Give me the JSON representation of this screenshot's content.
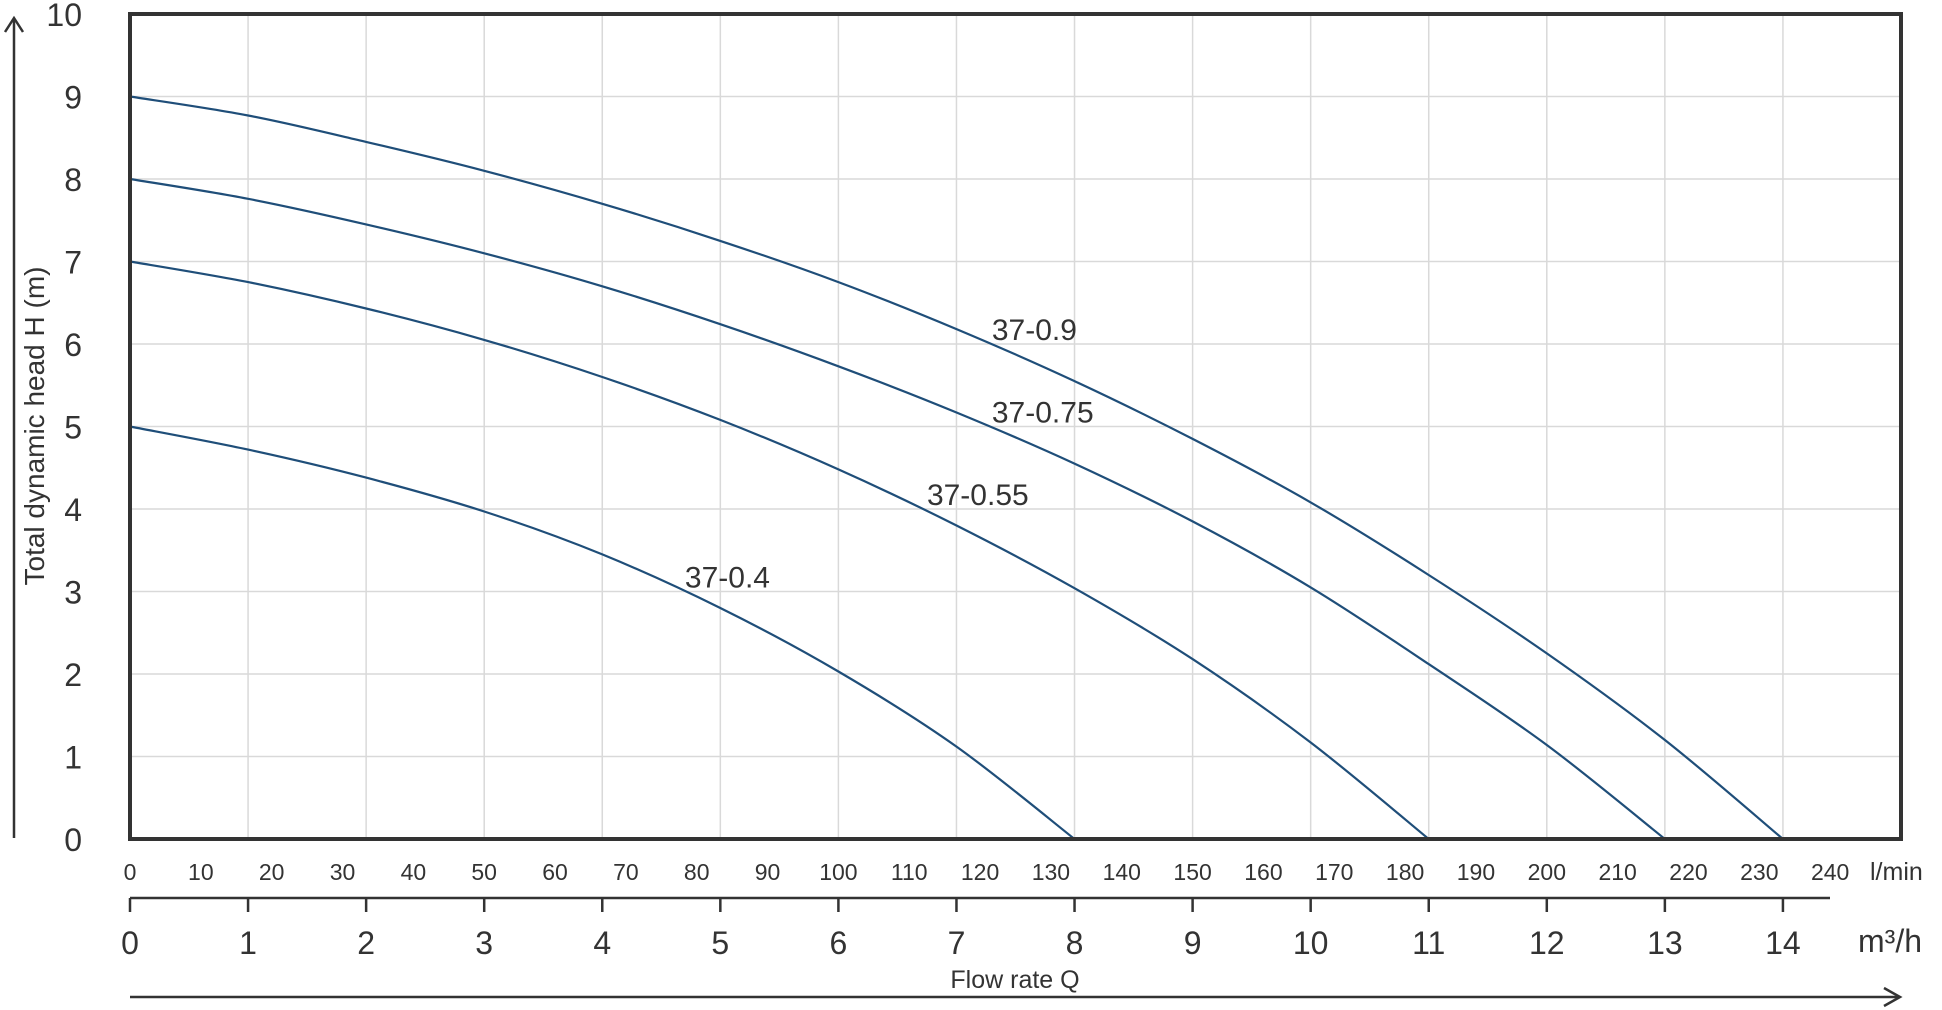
{
  "chart_data": {
    "type": "line",
    "title": "",
    "ylabel": "Total dynamic head H (m)",
    "xlabel": "Flow rate Q",
    "x_unit": "m³/h",
    "x2_unit": "l/min",
    "xlim": [
      0,
      15
    ],
    "ylim": [
      0,
      10
    ],
    "y_ticks": [
      0,
      1,
      2,
      3,
      4,
      5,
      6,
      7,
      8,
      9,
      10
    ],
    "x_ticks_m3h": [
      0,
      1,
      2,
      3,
      4,
      5,
      6,
      7,
      8,
      9,
      10,
      11,
      12,
      13,
      14
    ],
    "x_ticks_lmin": [
      0,
      10,
      20,
      30,
      40,
      50,
      60,
      70,
      80,
      90,
      100,
      110,
      120,
      130,
      140,
      150,
      160,
      170,
      180,
      190,
      200,
      210,
      220,
      230,
      240
    ],
    "grid": true,
    "series": [
      {
        "name": "37-0.4",
        "color": "#1f4e79",
        "label_at": [
          4.7,
          3.05
        ],
        "x": [
          0,
          1,
          2,
          3,
          4,
          5,
          6,
          7,
          8
        ],
        "y": [
          5.0,
          4.72,
          4.38,
          3.97,
          3.45,
          2.8,
          2.03,
          1.12,
          0.0
        ]
      },
      {
        "name": "37-0.55",
        "color": "#1f4e79",
        "label_at": [
          6.75,
          4.05
        ],
        "x": [
          0,
          1,
          2,
          3,
          4,
          5,
          6,
          7,
          8,
          9,
          10,
          11
        ],
        "y": [
          7.0,
          6.75,
          6.43,
          6.05,
          5.6,
          5.08,
          4.48,
          3.8,
          3.04,
          2.18,
          1.17,
          0.0
        ]
      },
      {
        "name": "37-0.75",
        "color": "#1f4e79",
        "label_at": [
          7.3,
          5.05
        ],
        "x": [
          0,
          1,
          2,
          3,
          4,
          5,
          6,
          7,
          8,
          9,
          10,
          11,
          12,
          13
        ],
        "y": [
          8.0,
          7.76,
          7.45,
          7.1,
          6.7,
          6.24,
          5.73,
          5.17,
          4.55,
          3.85,
          3.05,
          2.12,
          1.14,
          0.0
        ]
      },
      {
        "name": "37-0.9",
        "color": "#1f4e79",
        "label_at": [
          7.3,
          6.05
        ],
        "x": [
          0,
          1,
          2,
          3,
          4,
          5,
          6,
          7,
          8,
          9,
          10,
          11,
          12,
          13,
          14
        ],
        "y": [
          9.0,
          8.77,
          8.45,
          8.1,
          7.7,
          7.25,
          6.75,
          6.18,
          5.55,
          4.85,
          4.08,
          3.2,
          2.25,
          1.2,
          0.0
        ]
      }
    ]
  }
}
